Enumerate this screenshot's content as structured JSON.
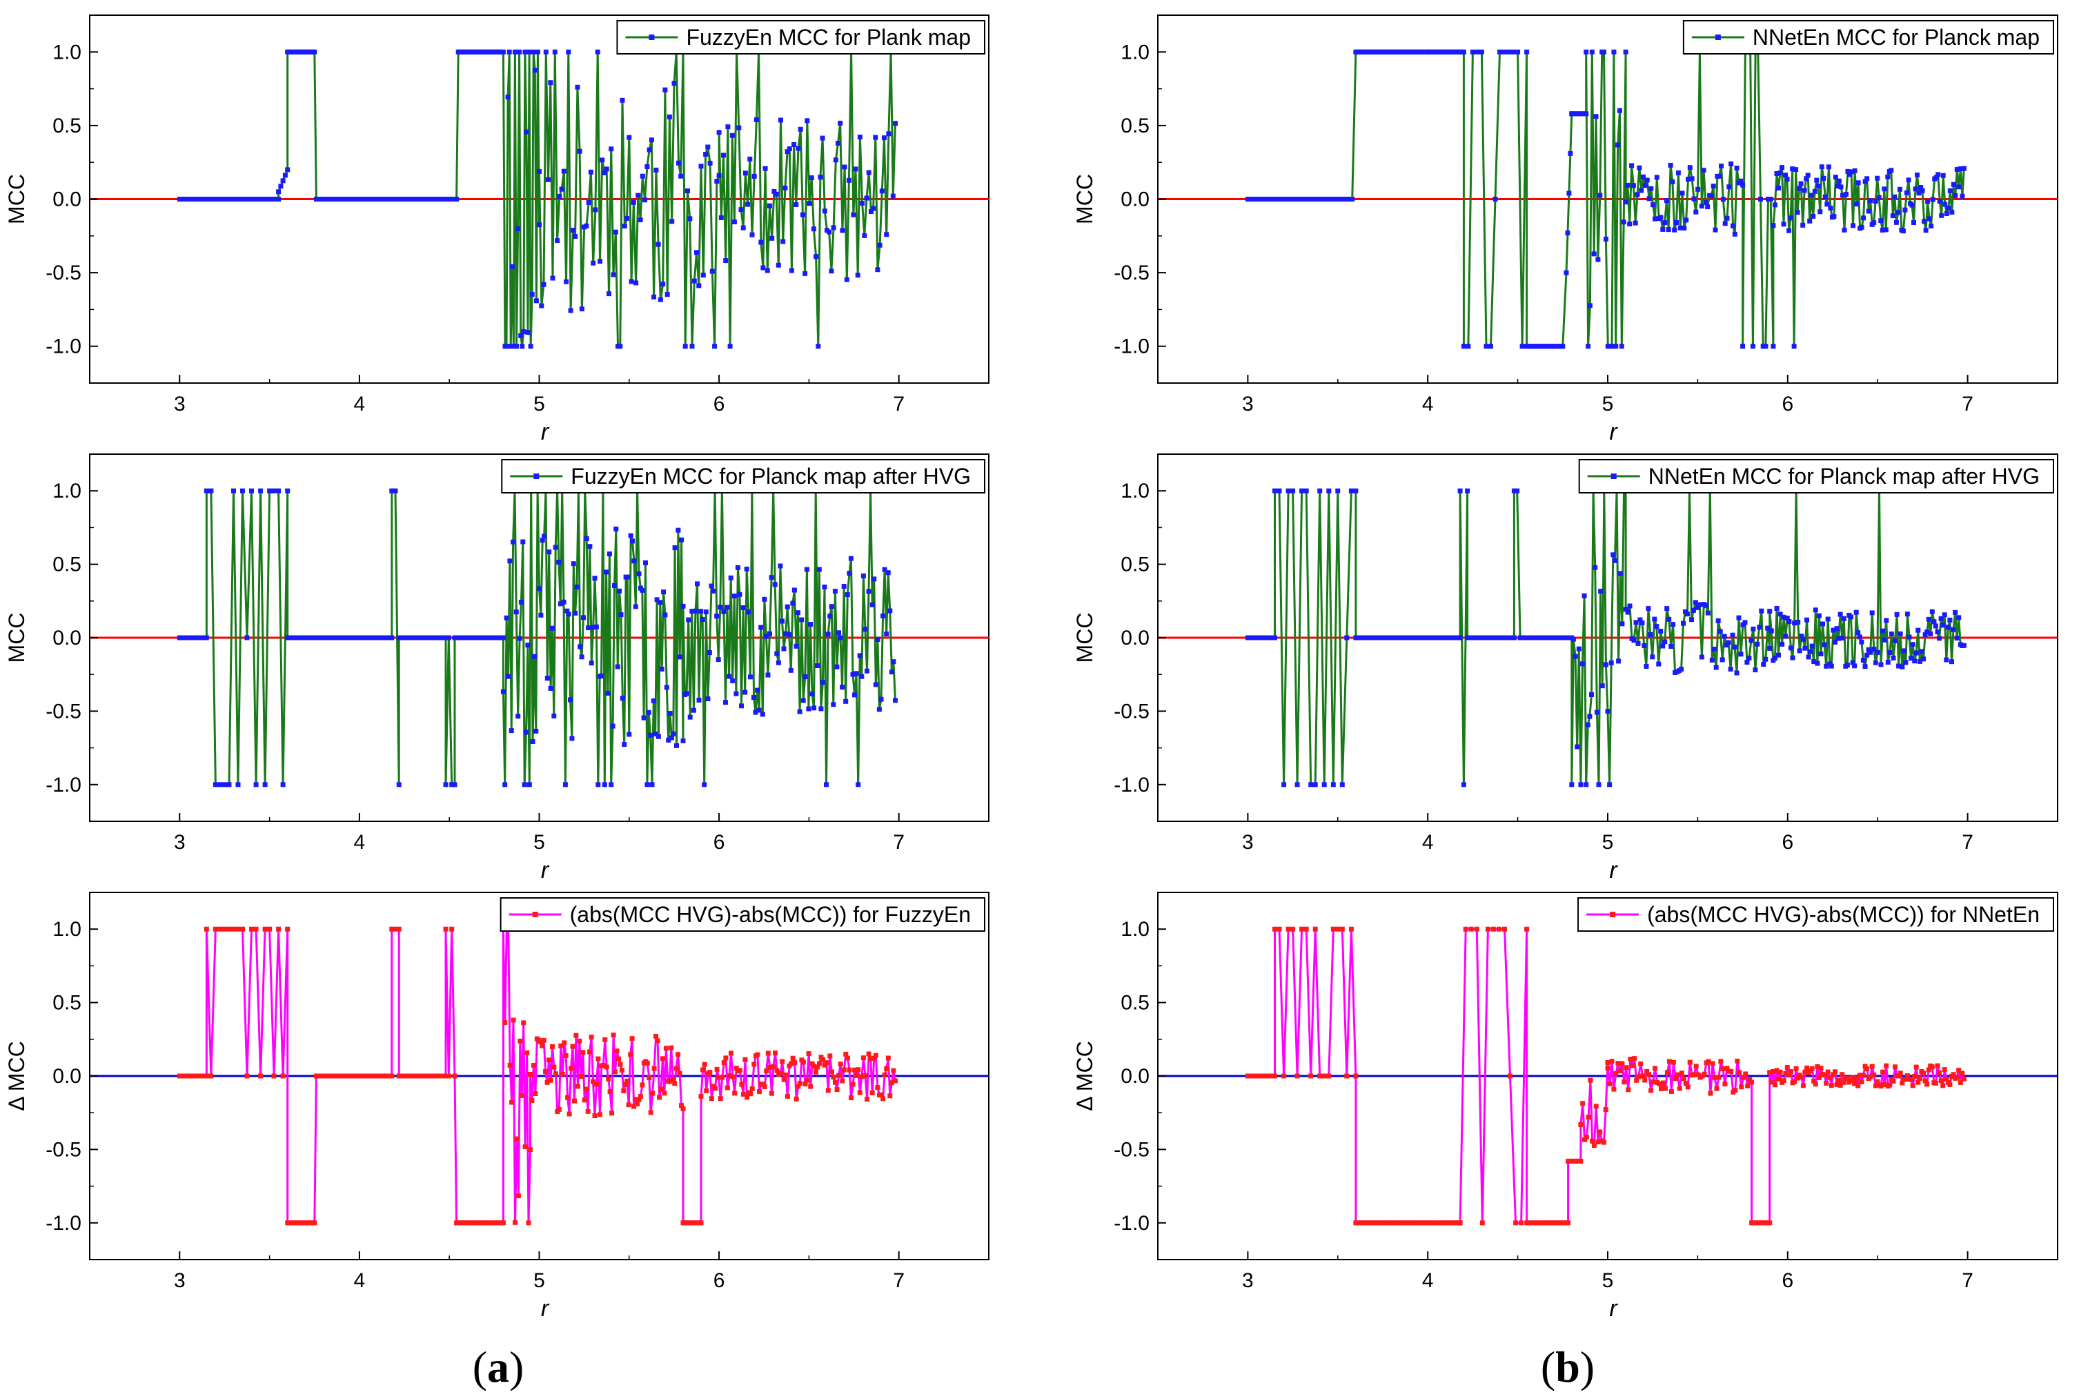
{
  "figure": {
    "panel_labels": [
      {
        "open": "(",
        "letter": "a",
        "close": ")"
      },
      {
        "open": "(",
        "letter": "b",
        "close": ")"
      }
    ]
  },
  "colors": {
    "green_line": "#1a7a1a",
    "blue_marker": "#1a1aff",
    "red_ref": "#ff0000",
    "magenta_line": "#ff00ff",
    "red_marker": "#ff1a1a",
    "blue_ref": "#0000cc"
  },
  "chart_data": [
    {
      "id": "a1",
      "type": "line",
      "column": 0,
      "row": 0,
      "legend": "FuzzyEn MCC for Plank map",
      "xlabel": "r",
      "ylabel": "MCC",
      "xlim": [
        2.5,
        7.5
      ],
      "ylim": [
        -1.25,
        1.25
      ],
      "xticks": [
        3,
        4,
        5,
        6,
        7
      ],
      "yticks": [
        -1.0,
        -0.5,
        0.0,
        0.5,
        1.0
      ],
      "ytick_labels": [
        "-1.0",
        "-0.5",
        "0.0",
        "0.5",
        "1.0"
      ],
      "reference_line": 0,
      "style": "mcc",
      "seed": 11,
      "series": {
        "name": "FuzzyEn MCC for Plank map",
        "segments": [
          {
            "kind": "flat",
            "from": 3.0,
            "to": 3.55,
            "value": 0
          },
          {
            "kind": "ramp",
            "from": 3.55,
            "to": 3.6,
            "v0": 0.05,
            "v1": 0.2
          },
          {
            "kind": "flat",
            "from": 3.6,
            "to": 3.75,
            "value": 1
          },
          {
            "kind": "flat",
            "from": 3.76,
            "to": 4.54,
            "value": 0
          },
          {
            "kind": "flat",
            "from": 4.55,
            "to": 4.8,
            "value": 1
          },
          {
            "kind": "noise",
            "from": 4.81,
            "to": 5.0,
            "n": 24,
            "amp": 1.0,
            "extreme": 0.55
          },
          {
            "kind": "noise",
            "from": 5.0,
            "to": 6.0,
            "n": 80,
            "amp": 0.8,
            "extreme": 0.14
          },
          {
            "kind": "noise",
            "from": 6.0,
            "to": 6.98,
            "n": 80,
            "amp": 0.55,
            "extreme": 0.09
          }
        ]
      }
    },
    {
      "id": "a2",
      "type": "line",
      "column": 0,
      "row": 1,
      "legend": "FuzzyEn MCC for Planck map after HVG",
      "xlabel": "r",
      "ylabel": "MCC",
      "xlim": [
        2.5,
        7.5
      ],
      "ylim": [
        -1.25,
        1.25
      ],
      "xticks": [
        3,
        4,
        5,
        6,
        7
      ],
      "yticks": [
        -1.0,
        -0.5,
        0.0,
        0.5,
        1.0
      ],
      "ytick_labels": [
        "-1.0",
        "-0.5",
        "0.0",
        "0.5",
        "1.0"
      ],
      "reference_line": 0,
      "style": "mcc",
      "seed": 23,
      "series": {
        "name": "FuzzyEn MCC for Planck map after HVG",
        "segments": [
          {
            "kind": "flat",
            "from": 3.0,
            "to": 3.15,
            "value": 0
          },
          {
            "kind": "spikes",
            "from": 3.15,
            "to": 3.6,
            "n": 18
          },
          {
            "kind": "flat",
            "from": 3.6,
            "to": 4.18,
            "value": 0
          },
          {
            "kind": "spikes",
            "from": 4.18,
            "to": 4.22,
            "n": 2
          },
          {
            "kind": "flat",
            "from": 4.22,
            "to": 4.48,
            "value": 0
          },
          {
            "kind": "spikes",
            "from": 4.48,
            "to": 4.53,
            "n": 3
          },
          {
            "kind": "flat",
            "from": 4.53,
            "to": 4.8,
            "value": 0
          },
          {
            "kind": "noise",
            "from": 4.8,
            "to": 5.8,
            "n": 110,
            "amp": 0.75,
            "extreme": 0.08
          },
          {
            "kind": "noise",
            "from": 5.8,
            "to": 6.98,
            "n": 120,
            "amp": 0.55,
            "extreme": 0.05
          }
        ]
      }
    },
    {
      "id": "a3",
      "type": "line",
      "column": 0,
      "row": 2,
      "legend": "(abs(MCC HVG)-abs(MCC)) for FuzzyEn",
      "xlabel": "r",
      "ylabel": "Δ MCC",
      "xlim": [
        2.5,
        7.5
      ],
      "ylim": [
        -1.25,
        1.25
      ],
      "xticks": [
        3,
        4,
        5,
        6,
        7
      ],
      "yticks": [
        -1.0,
        -0.5,
        0.0,
        0.5,
        1.0
      ],
      "ytick_labels": [
        "-1.0",
        "-0.5",
        "0.0",
        "0.5",
        "1.0"
      ],
      "reference_line": 0,
      "style": "delta",
      "seed": 37,
      "series": {
        "name": "(abs(MCC HVG)-abs(MCC)) for FuzzyEn",
        "segments": [
          {
            "kind": "flat",
            "from": 3.0,
            "to": 3.15,
            "value": 0
          },
          {
            "kind": "spikes_up",
            "from": 3.15,
            "to": 3.6,
            "n": 18
          },
          {
            "kind": "flat",
            "from": 3.6,
            "to": 3.75,
            "value": -1
          },
          {
            "kind": "flat",
            "from": 3.76,
            "to": 4.18,
            "value": 0
          },
          {
            "kind": "spikes_up",
            "from": 4.18,
            "to": 4.22,
            "n": 2
          },
          {
            "kind": "flat",
            "from": 4.22,
            "to": 4.48,
            "value": 0
          },
          {
            "kind": "spikes_up",
            "from": 4.48,
            "to": 4.53,
            "n": 3
          },
          {
            "kind": "flat",
            "from": 4.54,
            "to": 4.8,
            "value": -1
          },
          {
            "kind": "noise",
            "from": 4.8,
            "to": 4.95,
            "n": 16,
            "amp": 0.7,
            "extreme": 0.2,
            "bias": -0.3
          },
          {
            "kind": "noise",
            "from": 4.95,
            "to": 5.8,
            "n": 90,
            "amp": 0.28,
            "extreme": 0.0
          },
          {
            "kind": "flat",
            "from": 5.8,
            "to": 5.9,
            "value": -1
          },
          {
            "kind": "noise",
            "from": 5.9,
            "to": 6.98,
            "n": 110,
            "amp": 0.16,
            "extreme": 0.0
          }
        ]
      }
    },
    {
      "id": "b1",
      "type": "line",
      "column": 1,
      "row": 0,
      "legend": "NNetEn MCC for Planck map",
      "xlabel": "r",
      "ylabel": "MCC",
      "xlim": [
        2.5,
        7.5
      ],
      "ylim": [
        -1.25,
        1.25
      ],
      "xticks": [
        3,
        4,
        5,
        6,
        7
      ],
      "yticks": [
        -1.0,
        -0.5,
        0.0,
        0.5,
        1.0
      ],
      "ytick_labels": [
        "-1.0",
        "-0.5",
        "0.0",
        "0.5",
        "1.0"
      ],
      "reference_line": 0,
      "style": "mcc",
      "seed": 53,
      "series": {
        "name": "NNetEn MCC for Planck map",
        "segments": [
          {
            "kind": "flat",
            "from": 3.0,
            "to": 3.58,
            "value": 0
          },
          {
            "kind": "flat",
            "from": 3.6,
            "to": 3.96,
            "value": 1
          },
          {
            "kind": "spikes",
            "from": 3.97,
            "to": 4.0,
            "n": 2
          },
          {
            "kind": "flat",
            "from": 4.0,
            "to": 4.2,
            "value": 1
          },
          {
            "kind": "spikes",
            "from": 4.2,
            "to": 4.55,
            "n": 14
          },
          {
            "kind": "flat",
            "from": 4.55,
            "to": 4.75,
            "value": -1
          },
          {
            "kind": "ramp",
            "from": 4.77,
            "to": 4.8,
            "v0": -0.5,
            "v1": 0.58
          },
          {
            "kind": "flat",
            "from": 4.8,
            "to": 4.88,
            "value": 0.58
          },
          {
            "kind": "noise",
            "from": 4.88,
            "to": 5.1,
            "n": 20,
            "amp": 0.8,
            "extreme": 0.3
          },
          {
            "kind": "noise",
            "from": 5.1,
            "to": 5.75,
            "n": 60,
            "amp": 0.25,
            "extreme": 0.06
          },
          {
            "kind": "spikes",
            "from": 5.75,
            "to": 5.92,
            "n": 12
          },
          {
            "kind": "noise",
            "from": 5.92,
            "to": 6.98,
            "n": 110,
            "amp": 0.22,
            "extreme": 0.03
          }
        ]
      }
    },
    {
      "id": "b2",
      "type": "line",
      "column": 1,
      "row": 1,
      "legend": "NNetEn MCC for Planck map after HVG",
      "xlabel": "r",
      "ylabel": "MCC",
      "xlim": [
        2.5,
        7.5
      ],
      "ylim": [
        -1.25,
        1.25
      ],
      "xticks": [
        3,
        4,
        5,
        6,
        7
      ],
      "yticks": [
        -1.0,
        -0.5,
        0.0,
        0.5,
        1.0
      ],
      "ytick_labels": [
        "-1.0",
        "-0.5",
        "0.0",
        "0.5",
        "1.0"
      ],
      "reference_line": 0,
      "style": "mcc",
      "seed": 67,
      "series": {
        "name": "NNetEn MCC for Planck map after HVG",
        "segments": [
          {
            "kind": "flat",
            "from": 3.0,
            "to": 3.15,
            "value": 0
          },
          {
            "kind": "spikes",
            "from": 3.15,
            "to": 3.6,
            "n": 18
          },
          {
            "kind": "flat",
            "from": 3.6,
            "to": 4.18,
            "value": 0
          },
          {
            "kind": "spikes",
            "from": 4.18,
            "to": 4.22,
            "n": 2
          },
          {
            "kind": "flat",
            "from": 4.22,
            "to": 4.48,
            "value": 0
          },
          {
            "kind": "spikes",
            "from": 4.48,
            "to": 4.53,
            "n": 3
          },
          {
            "kind": "flat",
            "from": 4.53,
            "to": 4.8,
            "value": 0
          },
          {
            "kind": "noise",
            "from": 4.8,
            "to": 5.1,
            "n": 30,
            "amp": 0.75,
            "extreme": 0.15
          },
          {
            "kind": "noise",
            "from": 5.1,
            "to": 5.9,
            "n": 70,
            "amp": 0.25,
            "extreme": 0.05
          },
          {
            "kind": "noise",
            "from": 5.9,
            "to": 6.98,
            "n": 110,
            "amp": 0.2,
            "extreme": 0.02
          }
        ]
      }
    },
    {
      "id": "b3",
      "type": "line",
      "column": 1,
      "row": 2,
      "legend": "(abs(MCC HVG)-abs(MCC)) for NNetEn",
      "xlabel": "r",
      "ylabel": "Δ MCC",
      "xlim": [
        2.5,
        7.5
      ],
      "ylim": [
        -1.25,
        1.25
      ],
      "xticks": [
        3,
        4,
        5,
        6,
        7
      ],
      "yticks": [
        -1.0,
        -0.5,
        0.0,
        0.5,
        1.0
      ],
      "ytick_labels": [
        "-1.0",
        "-0.5",
        "0.0",
        "0.5",
        "1.0"
      ],
      "reference_line": 0,
      "style": "delta",
      "seed": 79,
      "series": {
        "name": "(abs(MCC HVG)-abs(MCC)) for NNetEn",
        "segments": [
          {
            "kind": "flat",
            "from": 3.0,
            "to": 3.15,
            "value": 0
          },
          {
            "kind": "spikes_up",
            "from": 3.15,
            "to": 3.6,
            "n": 18
          },
          {
            "kind": "flat",
            "from": 3.6,
            "to": 4.18,
            "value": -1
          },
          {
            "kind": "spikes_pm",
            "from": 4.18,
            "to": 4.55,
            "n": 12
          },
          {
            "kind": "flat",
            "from": 4.55,
            "to": 4.78,
            "value": -1
          },
          {
            "kind": "flat",
            "from": 4.78,
            "to": 4.85,
            "value": -0.58
          },
          {
            "kind": "noise",
            "from": 4.85,
            "to": 5.0,
            "n": 14,
            "amp": 0.3,
            "extreme": 0.0,
            "bias": -0.2
          },
          {
            "kind": "noise",
            "from": 5.0,
            "to": 5.8,
            "n": 70,
            "amp": 0.12,
            "extreme": 0.0
          },
          {
            "kind": "flat",
            "from": 5.8,
            "to": 5.9,
            "value": -1
          },
          {
            "kind": "noise",
            "from": 5.9,
            "to": 6.98,
            "n": 110,
            "amp": 0.07,
            "extreme": 0.0
          }
        ]
      }
    }
  ]
}
